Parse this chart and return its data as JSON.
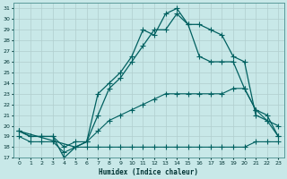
{
  "xlabel": "Humidex (Indice chaleur)",
  "bg_color": "#c8e8e8",
  "grid_color": "#b8d8d8",
  "line_color": "#006060",
  "xlim": [
    -0.5,
    23.5
  ],
  "ylim": [
    17,
    31.5
  ],
  "xticks": [
    0,
    1,
    2,
    3,
    4,
    5,
    6,
    7,
    8,
    9,
    10,
    11,
    12,
    13,
    14,
    15,
    16,
    17,
    18,
    19,
    20,
    21,
    22,
    23
  ],
  "yticks": [
    17,
    18,
    19,
    20,
    21,
    22,
    23,
    24,
    25,
    26,
    27,
    28,
    29,
    30,
    31
  ],
  "line1_x": [
    0,
    1,
    2,
    3,
    4,
    5,
    6,
    7,
    8,
    9,
    10,
    11,
    12,
    13,
    14,
    15,
    16,
    17,
    18,
    19,
    20,
    21,
    22,
    23
  ],
  "line1_y": [
    19.0,
    18.5,
    18.5,
    18.5,
    17.5,
    18.0,
    18.0,
    18.0,
    18.0,
    18.0,
    18.0,
    18.0,
    18.0,
    18.0,
    18.0,
    18.0,
    18.0,
    18.0,
    18.0,
    18.0,
    18.0,
    18.5,
    18.5,
    18.5
  ],
  "line2_x": [
    0,
    1,
    2,
    3,
    4,
    5,
    6,
    7,
    8,
    9,
    10,
    11,
    12,
    13,
    14,
    15,
    16,
    17,
    18,
    19,
    20,
    21,
    22,
    23
  ],
  "line2_y": [
    19.5,
    19.0,
    19.0,
    19.0,
    18.0,
    18.5,
    18.5,
    19.5,
    20.5,
    21.0,
    21.5,
    22.0,
    22.5,
    23.0,
    23.0,
    23.0,
    23.0,
    23.0,
    23.0,
    23.5,
    23.5,
    21.5,
    20.5,
    19.0
  ],
  "line3_x": [
    0,
    1,
    2,
    3,
    4,
    5,
    6,
    7,
    8,
    9,
    10,
    11,
    12,
    13,
    14,
    15,
    16,
    17,
    18,
    19,
    20,
    21,
    22,
    23
  ],
  "line3_y": [
    19.5,
    19.0,
    19.0,
    19.0,
    17.0,
    18.0,
    18.5,
    23.0,
    24.0,
    25.0,
    26.5,
    29.0,
    28.5,
    30.5,
    31.0,
    29.5,
    29.5,
    29.0,
    28.5,
    26.5,
    26.0,
    21.0,
    20.5,
    20.0
  ],
  "line4_x": [
    0,
    5,
    6,
    7,
    8,
    9,
    10,
    11,
    12,
    13,
    14,
    15,
    16,
    17,
    18,
    19,
    20,
    21,
    22,
    23
  ],
  "line4_y": [
    19.5,
    18.0,
    18.5,
    21.0,
    23.5,
    24.5,
    26.0,
    27.5,
    29.0,
    29.0,
    30.5,
    29.5,
    26.5,
    26.0,
    26.0,
    26.0,
    23.5,
    21.5,
    21.0,
    19.0
  ]
}
